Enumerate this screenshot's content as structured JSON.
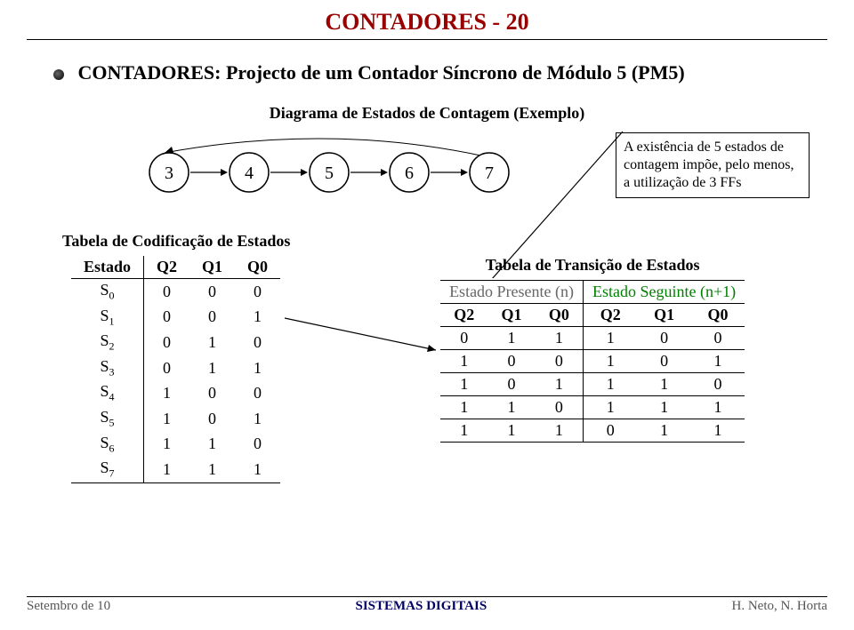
{
  "header": {
    "title": "CONTADORES - 20"
  },
  "section": {
    "title": "CONTADORES: Projecto de um Contador Síncrono de Módulo 5 (PM5)"
  },
  "diagram": {
    "caption": "Diagrama de Estados de Contagem (Exemplo)",
    "states": [
      "3",
      "4",
      "5",
      "6",
      "7"
    ],
    "note": "A existência de 5 estados de contagem impõe, pelo menos, a utilização de 3 FFs"
  },
  "codif": {
    "title": "Tabela de Codificação de Estados",
    "headers": [
      "Estado",
      "Q2",
      "Q1",
      "Q0"
    ],
    "rows": [
      {
        "label": "S",
        "sub": "0",
        "bits": [
          "0",
          "0",
          "0"
        ]
      },
      {
        "label": "S",
        "sub": "1",
        "bits": [
          "0",
          "0",
          "1"
        ]
      },
      {
        "label": "S",
        "sub": "2",
        "bits": [
          "0",
          "1",
          "0"
        ]
      },
      {
        "label": "S",
        "sub": "3",
        "bits": [
          "0",
          "1",
          "1"
        ]
      },
      {
        "label": "S",
        "sub": "4",
        "bits": [
          "1",
          "0",
          "0"
        ]
      },
      {
        "label": "S",
        "sub": "5",
        "bits": [
          "1",
          "0",
          "1"
        ]
      },
      {
        "label": "S",
        "sub": "6",
        "bits": [
          "1",
          "1",
          "0"
        ]
      },
      {
        "label": "S",
        "sub": "7",
        "bits": [
          "1",
          "1",
          "1"
        ]
      }
    ]
  },
  "trans": {
    "title": "Tabela de Transição de Estados",
    "group_headers": [
      "Estado Presente (n)",
      "Estado Seguinte (n+1)"
    ],
    "sub_headers": [
      "Q2",
      "Q1",
      "Q0",
      "Q2",
      "Q1",
      "Q0"
    ],
    "rows": [
      [
        "0",
        "1",
        "1",
        "1",
        "0",
        "0"
      ],
      [
        "1",
        "0",
        "0",
        "1",
        "0",
        "1"
      ],
      [
        "1",
        "0",
        "1",
        "1",
        "1",
        "0"
      ],
      [
        "1",
        "1",
        "0",
        "1",
        "1",
        "1"
      ],
      [
        "1",
        "1",
        "1",
        "0",
        "1",
        "1"
      ]
    ]
  },
  "footer": {
    "left": "Setembro de 10",
    "center": "SISTEMAS DIGITAIS",
    "right": "H. Neto, N. Horta"
  },
  "colors": {
    "title_color": "#990000",
    "present_color": "#666666",
    "next_color": "#008000"
  }
}
